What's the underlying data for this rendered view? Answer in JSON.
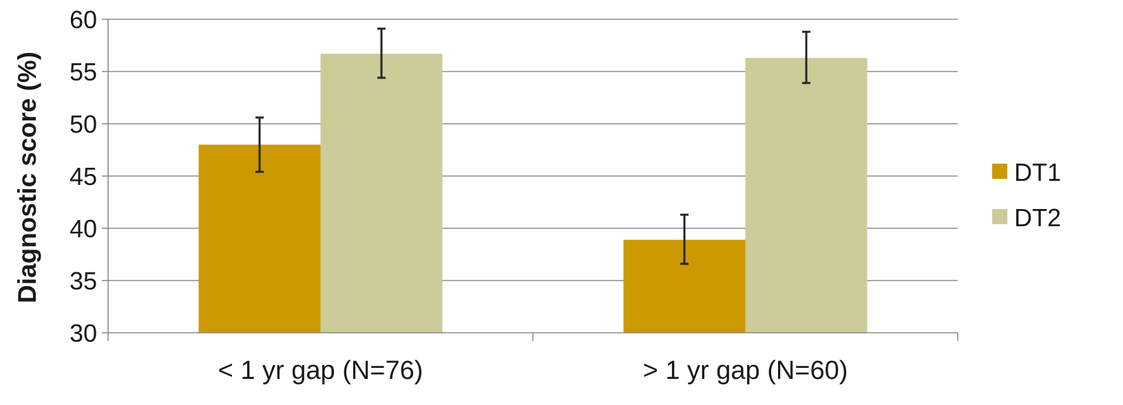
{
  "chart_data": {
    "type": "bar",
    "title": "",
    "xlabel": "",
    "ylabel": "Diagnostic score (%)",
    "ylim": [
      30,
      60
    ],
    "yticks": [
      "30",
      "35",
      "40",
      "45",
      "50",
      "55",
      "60"
    ],
    "grid": true,
    "legend_position": "right",
    "categories": [
      "< 1 yr gap (N=76)",
      "> 1 yr gap (N=60)"
    ],
    "series": [
      {
        "name": "DT1",
        "color": "#cc9900",
        "values": [
          48.0,
          38.9
        ],
        "error_low": [
          45.4,
          36.6
        ],
        "error_high": [
          50.6,
          41.3
        ]
      },
      {
        "name": "DT2",
        "color": "#cccc99",
        "values": [
          56.7,
          56.3
        ],
        "error_low": [
          54.4,
          53.9
        ],
        "error_high": [
          59.1,
          58.8
        ]
      }
    ]
  }
}
